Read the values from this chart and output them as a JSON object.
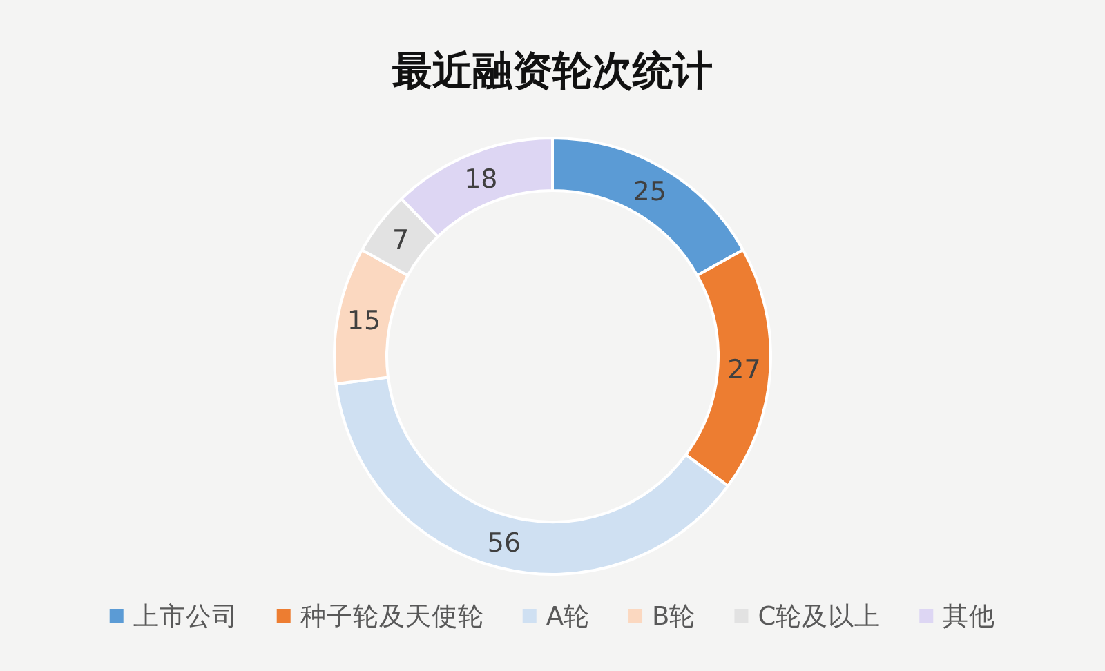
{
  "chart_data": {
    "type": "donut",
    "title": "最近融资轮次统计",
    "categories": [
      "上市公司",
      "种子轮及天使轮",
      "A轮",
      "B轮",
      "C轮及以上",
      "其他"
    ],
    "values": [
      25,
      27,
      56,
      15,
      7,
      18
    ],
    "colors": [
      "#5b9bd5",
      "#ed7d31",
      "#cfe0f2",
      "#fbd8c0",
      "#e2e2e2",
      "#ddd6f3"
    ],
    "data_labels": true,
    "legend": "bottom"
  }
}
